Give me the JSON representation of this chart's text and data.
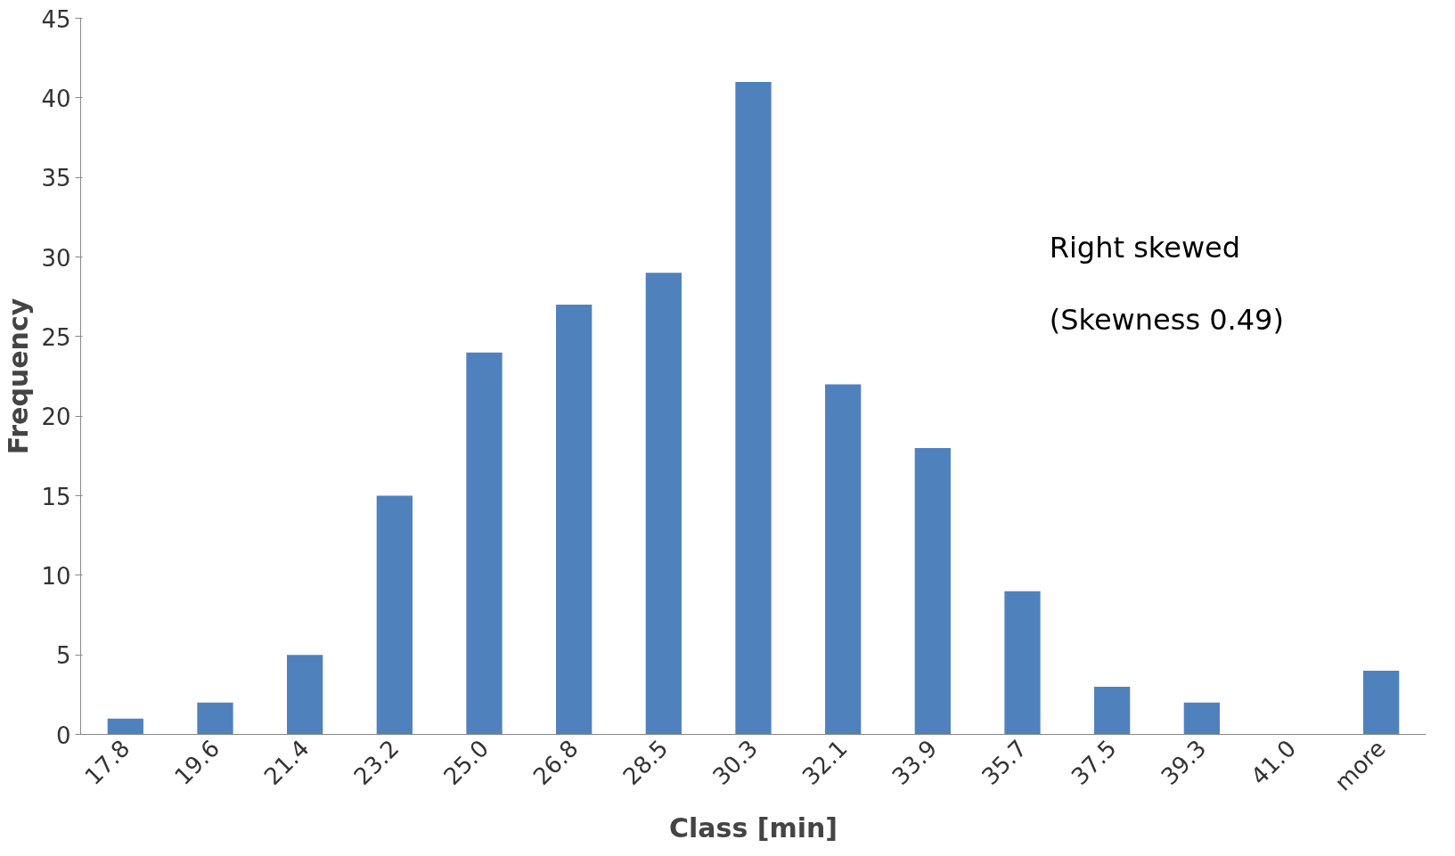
{
  "chart_data": {
    "type": "bar",
    "xlabel": "Class [min]",
    "ylabel": "Frequency",
    "categories": [
      "17.8",
      "19.6",
      "21.4",
      "23.2",
      "25.0",
      "26.8",
      "28.5",
      "30.3",
      "32.1",
      "33.9",
      "35.7",
      "37.5",
      "39.3",
      "41.0",
      "more"
    ],
    "values": [
      1,
      2,
      5,
      15,
      24,
      27,
      29,
      41,
      22,
      18,
      9,
      3,
      2,
      0,
      4
    ],
    "color": "#4f81bd",
    "ylim": [
      0,
      45
    ],
    "yticks": [
      0,
      5,
      10,
      15,
      20,
      25,
      30,
      35,
      40,
      45
    ],
    "grid": false,
    "annotations": [
      "Right skewed\n(Skewness 0.49)"
    ]
  }
}
